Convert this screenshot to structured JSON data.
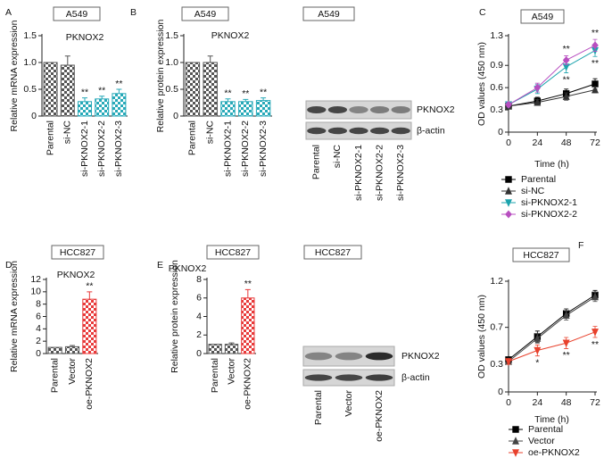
{
  "chart_data": [
    {
      "type": "bar",
      "panel": "A",
      "cell_line": "A549",
      "title": "PKNOX2",
      "y_label": "Relative mRNA expression",
      "categories": [
        "Parental",
        "si-NC",
        "si-PKNOX2-1",
        "si-PKNOX2-2",
        "si-PKNOX2-3"
      ],
      "values": [
        1.0,
        0.95,
        0.27,
        0.32,
        0.42
      ],
      "errors": [
        null,
        0.17,
        0.07,
        0.05,
        0.08
      ],
      "significance": [
        null,
        null,
        "**",
        "**",
        "**"
      ],
      "colors": [
        "#555555",
        "#555555",
        "#27a9b8",
        "#27a9b8",
        "#27a9b8"
      ],
      "ylim": [
        0,
        1.5
      ],
      "yticks": [
        0,
        0.5,
        {
          "value": 1,
          "label": "1.0"
        },
        1.5
      ]
    },
    {
      "type": "bar",
      "panel": "B",
      "cell_line": "A549",
      "title": "PKNOX2",
      "y_label": "Relative protein expression",
      "categories": [
        "Parental",
        "si-NC",
        "si-PKNOX2-1",
        "si-PKNOX2-2",
        "si-PKNOX2-3"
      ],
      "values": [
        1.0,
        1.0,
        0.27,
        0.27,
        0.29
      ],
      "errors": [
        null,
        0.12,
        0.05,
        0.04,
        0.05
      ],
      "significance": [
        null,
        null,
        "**",
        "**",
        "**"
      ],
      "colors": [
        "#555555",
        "#555555",
        "#27a9b8",
        "#27a9b8",
        "#27a9b8"
      ],
      "ylim": [
        0,
        1.5
      ],
      "yticks": [
        0,
        0.5,
        {
          "value": 1,
          "label": "1.0"
        },
        1.5
      ],
      "blot": {
        "header": "A549",
        "rows": [
          "PKNOX2",
          "β-actin"
        ],
        "lanes": [
          "Parental",
          "si-NC",
          "si-PKNOX2-1",
          "si-PKNOX2-2",
          "si-PKNOX2-3"
        ]
      }
    },
    {
      "type": "line",
      "panel": "C",
      "cell_line": "A549",
      "y_label": "OD values (450 nm)",
      "x_label": "Time (h)",
      "x": [
        0,
        24,
        48,
        72
      ],
      "xlim": [
        0,
        72
      ],
      "xticks": [
        0,
        24,
        48,
        72
      ],
      "ylim": [
        0,
        1.3
      ],
      "yticks": [
        0,
        0.3,
        0.6,
        0.9,
        1.3
      ],
      "series": [
        {
          "name": "Parental",
          "color": "#000000",
          "marker": "square",
          "values": [
            0.35,
            0.42,
            0.52,
            0.65
          ],
          "errors": [
            0.03,
            0.05,
            0.06,
            0.07
          ]
        },
        {
          "name": "si-NC",
          "color": "#333333",
          "marker": "triangle",
          "values": [
            0.35,
            0.4,
            0.48,
            0.57
          ],
          "errors": [
            0.03,
            0.04,
            0.05,
            0.04
          ]
        },
        {
          "name": "si-PKNOX2-1",
          "color": "#1ba3ad",
          "marker": "triangle-down",
          "values": [
            0.37,
            0.58,
            0.88,
            1.1
          ],
          "errors": [
            0.03,
            0.06,
            0.08,
            0.08
          ],
          "significance": [
            null,
            null,
            "**",
            "**"
          ],
          "significance_position": "below"
        },
        {
          "name": "si-PKNOX2-2",
          "color": "#b84fc0",
          "marker": "diamond",
          "values": [
            0.37,
            0.6,
            0.97,
            1.17
          ],
          "errors": [
            0.03,
            0.06,
            0.06,
            0.08
          ],
          "significance": [
            null,
            null,
            "**",
            "**"
          ],
          "significance_position": "above"
        }
      ]
    },
    {
      "type": "bar",
      "panel": "D",
      "cell_line": "HCC827",
      "title": "PKNOX2",
      "y_label": "Relative mRNA expression",
      "categories": [
        "Parental",
        "Vector",
        "oe-PKNOX2"
      ],
      "values": [
        1.0,
        1.1,
        8.8
      ],
      "errors": [
        null,
        0.2,
        1.2
      ],
      "significance": [
        null,
        null,
        "**"
      ],
      "colors": [
        "#555555",
        "#555555",
        "#e83a3a"
      ],
      "ylim": [
        0,
        12
      ],
      "yticks": [
        0,
        2,
        4,
        6,
        8,
        10,
        12
      ]
    },
    {
      "type": "bar",
      "panel": "E",
      "cell_line": "HCC827",
      "title": "PKNOX2",
      "y_label": "Relative protein expression",
      "categories": [
        "Parental",
        "Vector",
        "oe-PKNOX2"
      ],
      "values": [
        1.0,
        1.0,
        6.0
      ],
      "errors": [
        null,
        0.15,
        0.9
      ],
      "significance": [
        null,
        null,
        "**"
      ],
      "colors": [
        "#555555",
        "#555555",
        "#e83a3a"
      ],
      "ylim": [
        0,
        8
      ],
      "yticks": [
        0,
        2,
        4,
        6,
        8
      ],
      "blot": {
        "header": "HCC827",
        "rows": [
          "PKNOX2",
          "β-actin"
        ],
        "lanes": [
          "Parental",
          "Vector",
          "oe-PKNOX2"
        ]
      }
    },
    {
      "type": "line",
      "panel": "F",
      "cell_line": "HCC827",
      "y_label": "OD values (450 nm)",
      "x_label": "Time (h)",
      "x": [
        0,
        24,
        48,
        72
      ],
      "xlim": [
        0,
        72
      ],
      "xticks": [
        0,
        24,
        48,
        72
      ],
      "ylim": [
        0,
        1.2
      ],
      "yticks": [
        0,
        0.3,
        0.7,
        1.2
      ],
      "series": [
        {
          "name": "Parental",
          "color": "#000000",
          "marker": "square",
          "values": [
            0.35,
            0.6,
            0.85,
            1.05
          ],
          "errors": [
            0.03,
            0.06,
            0.05,
            0.05
          ]
        },
        {
          "name": "Vector",
          "color": "#444444",
          "marker": "triangle",
          "values": [
            0.33,
            0.58,
            0.83,
            1.03
          ],
          "errors": [
            0.03,
            0.05,
            0.05,
            0.05
          ]
        },
        {
          "name": "oe-PKNOX2",
          "color": "#e8412c",
          "marker": "triangle-down",
          "values": [
            0.33,
            0.45,
            0.53,
            0.65
          ],
          "errors": [
            0.03,
            0.06,
            0.06,
            0.06
          ],
          "significance": [
            null,
            "*",
            "**",
            "**"
          ],
          "significance_position": "below"
        }
      ]
    }
  ]
}
